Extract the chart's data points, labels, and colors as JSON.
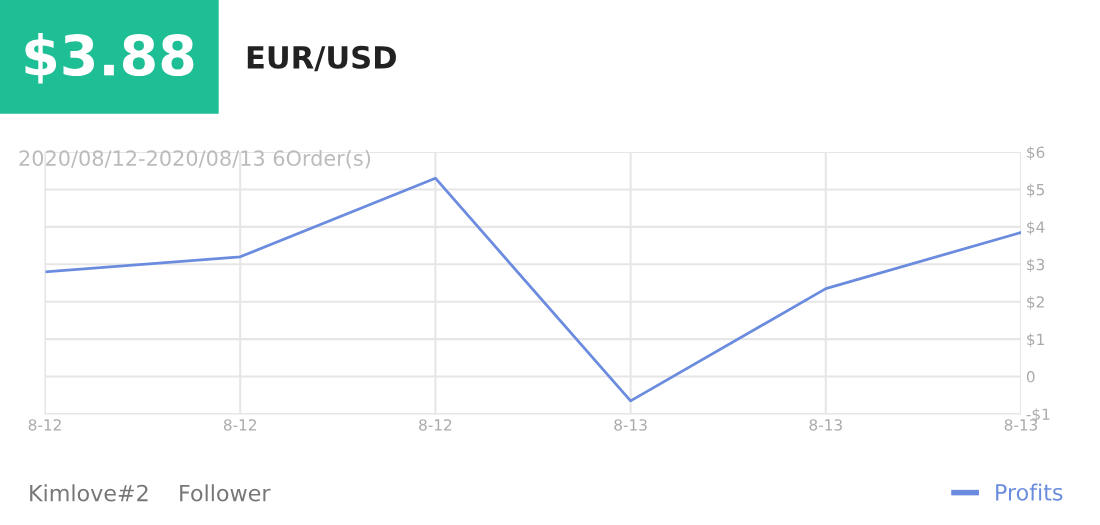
{
  "chart_data": {
    "type": "line",
    "title": "$3.88",
    "subtitle": "EUR/USD",
    "annotations": [
      "2020/08/12-2020/08/13 6Order(s)",
      "Kimlove#2    Follower"
    ],
    "categories": [
      "8-12",
      "8-12",
      "8-12",
      "8-13",
      "8-13",
      "8-13"
    ],
    "series": [
      {
        "name": "Profits",
        "color": "#6b8cde",
        "values": [
          2.8,
          3.2,
          5.3,
          -0.65,
          2.35,
          3.85
        ]
      }
    ],
    "ylim": [
      -1,
      6
    ],
    "yticks": [
      {
        "value": -1,
        "label": "-$1"
      },
      0,
      {
        "value": 1,
        "label": "$1"
      },
      {
        "value": 2,
        "label": "$2"
      },
      {
        "value": 3,
        "label": "$3"
      },
      {
        "value": 4,
        "label": "$4"
      },
      {
        "value": 5,
        "label": "$5"
      },
      {
        "value": 6,
        "label": "$6"
      }
    ],
    "grid": true,
    "legend": "bottom right",
    "marker": "none",
    "line_style": "solid"
  }
}
